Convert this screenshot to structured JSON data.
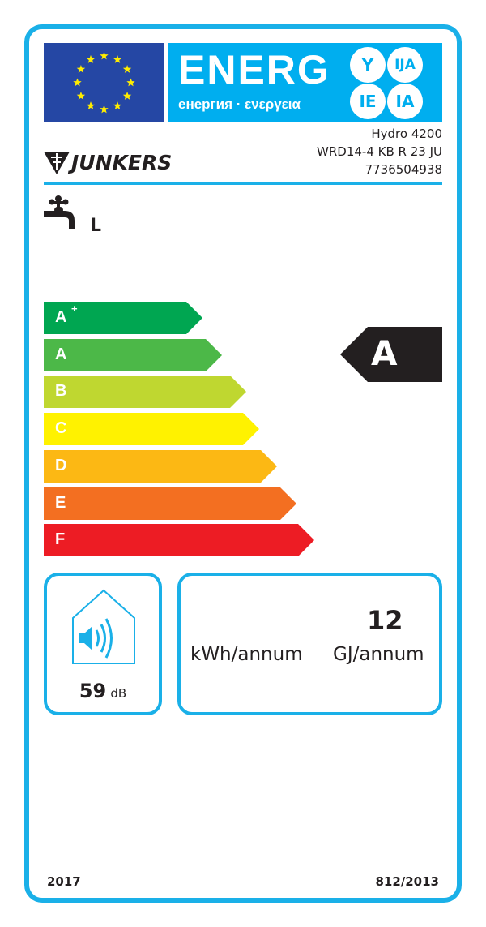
{
  "header": {
    "energy_word": "ENERG",
    "subtitle": "енергия · ενεργεια",
    "language_badges": [
      "Y",
      "IJA",
      "IE",
      "IA"
    ]
  },
  "brand": "JUNKERS",
  "product": {
    "name": "Hydro 4200",
    "model": "WRD14-4 KB R 23 JU",
    "code": "7736504938"
  },
  "load_profile": {
    "icon": "water-tap-icon",
    "value": "L"
  },
  "scale": [
    {
      "label": "A",
      "sup": "+",
      "color": "#00a651"
    },
    {
      "label": "A",
      "sup": "",
      "color": "#4cb848"
    },
    {
      "label": "B",
      "sup": "",
      "color": "#bfd730"
    },
    {
      "label": "C",
      "sup": "",
      "color": "#fff200"
    },
    {
      "label": "D",
      "sup": "",
      "color": "#fcb814"
    },
    {
      "label": "E",
      "sup": "",
      "color": "#f36f21"
    },
    {
      "label": "F",
      "sup": "",
      "color": "#ed1c24"
    }
  ],
  "rating": {
    "class": "A",
    "color": "#231f20"
  },
  "noise": {
    "icon": "sound-house-icon",
    "value": "59",
    "unit": "dB"
  },
  "consumption": {
    "kwh_value": "",
    "kwh_unit": "kWh/annum",
    "gj_value": "12",
    "gj_unit": "GJ/annum"
  },
  "footer": {
    "year": "2017",
    "regulation": "812/2013"
  },
  "colors": {
    "accent": "#1ab0e8",
    "eu_blue": "#2547a4",
    "star": "#ffed00"
  }
}
